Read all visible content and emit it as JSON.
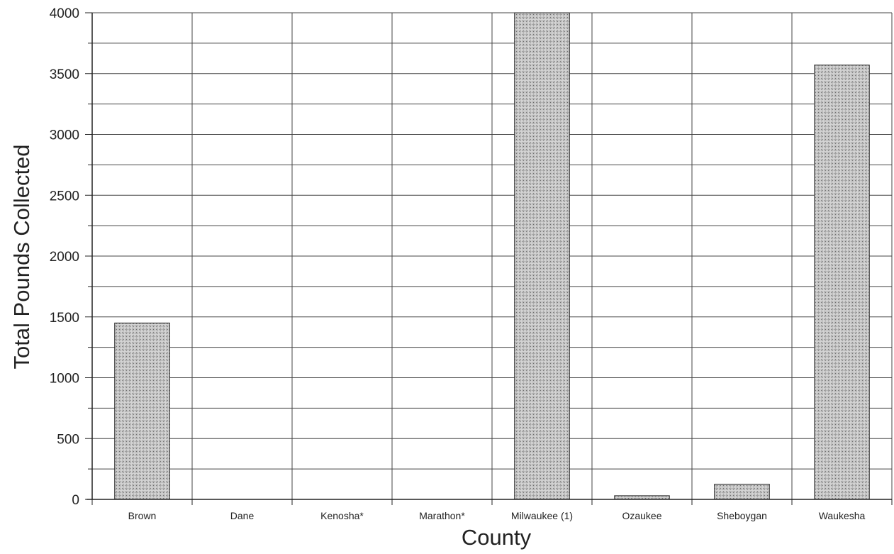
{
  "chart_data": {
    "type": "bar",
    "title": "",
    "xlabel": "County",
    "ylabel": "Total Pounds Collected",
    "categories": [
      "Brown",
      "Dane",
      "Kenosha*",
      "Marathon*",
      "Milwaukee (1)",
      "Ozaukee",
      "Sheboygan",
      "Waukesha"
    ],
    "values": [
      1450,
      0,
      0,
      0,
      4000,
      30,
      125,
      3570
    ],
    "ylim": [
      0,
      4000
    ],
    "yticks": [
      0,
      500,
      1000,
      1500,
      2000,
      2500,
      3000,
      3500,
      4000
    ],
    "minor_grid_step": 250,
    "grid": true,
    "legend": "none",
    "colors": {
      "bar_fill": "#bdbdbd",
      "bar_stroke": "#2a2a2a",
      "grid": "#444444",
      "axis": "#222222"
    }
  }
}
